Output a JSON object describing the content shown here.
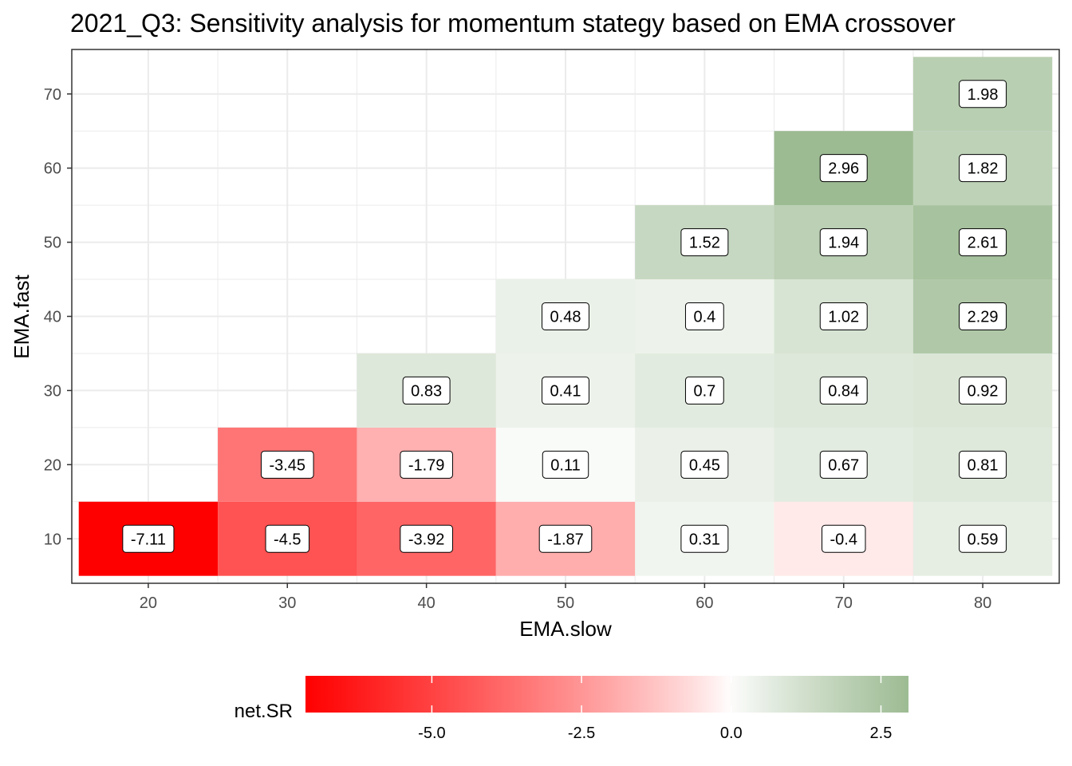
{
  "chart_data": {
    "type": "heatmap",
    "title": "2021_Q3: Sensitivity analysis for momentum stategy based on EMA crossover",
    "xlabel": "EMA.slow",
    "ylabel": "EMA.fast",
    "x_ticks": [
      20,
      30,
      40,
      50,
      60,
      70,
      80
    ],
    "y_ticks": [
      10,
      20,
      30,
      40,
      50,
      60,
      70
    ],
    "xlim": [
      14.5,
      85.5
    ],
    "ylim": [
      4,
      76
    ],
    "grid": true,
    "cells": [
      {
        "slow": 20,
        "fast": 10,
        "value": -7.11
      },
      {
        "slow": 30,
        "fast": 10,
        "value": -4.5
      },
      {
        "slow": 40,
        "fast": 10,
        "value": -3.92
      },
      {
        "slow": 50,
        "fast": 10,
        "value": -1.87
      },
      {
        "slow": 60,
        "fast": 10,
        "value": 0.31
      },
      {
        "slow": 70,
        "fast": 10,
        "value": -0.4
      },
      {
        "slow": 80,
        "fast": 10,
        "value": 0.59
      },
      {
        "slow": 30,
        "fast": 20,
        "value": -3.45
      },
      {
        "slow": 40,
        "fast": 20,
        "value": -1.79
      },
      {
        "slow": 50,
        "fast": 20,
        "value": 0.11
      },
      {
        "slow": 60,
        "fast": 20,
        "value": 0.45
      },
      {
        "slow": 70,
        "fast": 20,
        "value": 0.67
      },
      {
        "slow": 80,
        "fast": 20,
        "value": 0.81
      },
      {
        "slow": 40,
        "fast": 30,
        "value": 0.83
      },
      {
        "slow": 50,
        "fast": 30,
        "value": 0.41
      },
      {
        "slow": 60,
        "fast": 30,
        "value": 0.7
      },
      {
        "slow": 70,
        "fast": 30,
        "value": 0.84
      },
      {
        "slow": 80,
        "fast": 30,
        "value": 0.92
      },
      {
        "slow": 50,
        "fast": 40,
        "value": 0.48
      },
      {
        "slow": 60,
        "fast": 40,
        "value": 0.4
      },
      {
        "slow": 70,
        "fast": 40,
        "value": 1.02
      },
      {
        "slow": 80,
        "fast": 40,
        "value": 2.29
      },
      {
        "slow": 60,
        "fast": 50,
        "value": 1.52
      },
      {
        "slow": 70,
        "fast": 50,
        "value": 1.94
      },
      {
        "slow": 80,
        "fast": 50,
        "value": 2.61
      },
      {
        "slow": 70,
        "fast": 60,
        "value": 2.96
      },
      {
        "slow": 80,
        "fast": 60,
        "value": 1.82
      },
      {
        "slow": 80,
        "fast": 70,
        "value": 1.98
      }
    ],
    "legend": {
      "title": "net.SR",
      "position": "bottom",
      "range": [
        -7.11,
        2.96
      ],
      "ticks": [
        -5.0,
        -2.5,
        0.0,
        2.5
      ],
      "tick_labels": [
        "-5.0",
        "-2.5",
        "0.0",
        "2.5"
      ],
      "low_color": "#ff0000",
      "mid_color": "#ffffff",
      "high_color": "#9dbb93"
    }
  }
}
